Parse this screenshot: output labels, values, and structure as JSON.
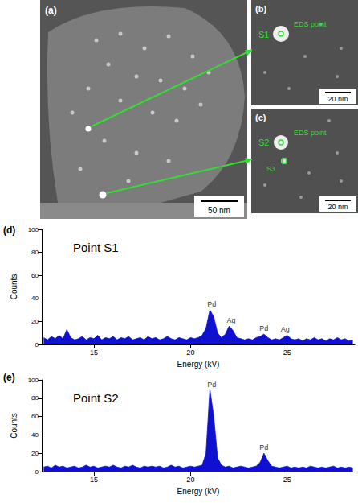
{
  "micrographs": {
    "a": {
      "label": "(a)",
      "scale_bar": "50 nm"
    },
    "b": {
      "label": "(b)",
      "points": [
        "S1"
      ],
      "marker_text": "EDS point",
      "scale_bar": "20 nm"
    },
    "c": {
      "label": "(c)",
      "points": [
        "S2",
        "S3"
      ],
      "marker_text": "EDS point",
      "scale_bar": "20 nm"
    }
  },
  "chart_data": [
    {
      "type": "area",
      "panel": "(d)",
      "title": "Point S1",
      "x_label": "Energy (kV)",
      "y_label": "Counts",
      "color": "#1010d0",
      "grid": false,
      "xlim": [
        12.3,
        28.5
      ],
      "xticks": [
        15,
        20,
        25
      ],
      "ylim": [
        0,
        100
      ],
      "yticks": [
        0,
        20,
        40,
        60,
        80,
        100
      ],
      "x": [
        12.4,
        12.6,
        12.8,
        13.0,
        13.2,
        13.4,
        13.6,
        13.8,
        14.0,
        14.2,
        14.4,
        14.6,
        14.8,
        15.0,
        15.2,
        15.4,
        15.6,
        15.8,
        16.0,
        16.2,
        16.4,
        16.6,
        16.8,
        17.0,
        17.2,
        17.4,
        17.6,
        17.8,
        18.0,
        18.2,
        18.4,
        18.6,
        18.8,
        19.0,
        19.2,
        19.4,
        19.6,
        19.8,
        20.0,
        20.2,
        20.4,
        20.6,
        20.8,
        21.0,
        21.2,
        21.4,
        21.6,
        21.8,
        22.0,
        22.2,
        22.4,
        22.6,
        22.8,
        23.0,
        23.2,
        23.4,
        23.6,
        23.8,
        24.0,
        24.2,
        24.4,
        24.6,
        24.8,
        25.0,
        25.2,
        25.4,
        25.6,
        25.8,
        26.0,
        26.2,
        26.4,
        26.6,
        26.8,
        27.0,
        27.2,
        27.4,
        27.6,
        27.8,
        28.0,
        28.2,
        28.4
      ],
      "values": [
        6,
        4,
        7,
        5,
        8,
        5,
        13,
        6,
        4,
        5,
        7,
        4,
        6,
        5,
        8,
        4,
        6,
        5,
        7,
        4,
        6,
        5,
        7,
        4,
        5,
        6,
        4,
        7,
        5,
        6,
        4,
        5,
        7,
        5,
        4,
        6,
        5,
        4,
        6,
        5,
        6,
        8,
        14,
        30,
        24,
        10,
        6,
        9,
        16,
        12,
        6,
        5,
        4,
        5,
        4,
        6,
        7,
        9,
        6,
        4,
        5,
        4,
        6,
        8,
        5,
        4,
        5,
        3,
        5,
        4,
        6,
        4,
        5,
        3,
        5,
        4,
        6,
        4,
        5,
        3,
        4
      ],
      "annotations": [
        {
          "text": "Pd",
          "x": 21.1,
          "y": 35
        },
        {
          "text": "Ag",
          "x": 22.1,
          "y": 21
        },
        {
          "text": "Pd",
          "x": 23.8,
          "y": 14
        },
        {
          "text": "Ag",
          "x": 24.9,
          "y": 13
        }
      ]
    },
    {
      "type": "area",
      "panel": "(e)",
      "title": "Point S2",
      "x_label": "Energy (kV)",
      "y_label": "Counts",
      "color": "#1010d0",
      "grid": false,
      "xlim": [
        12.3,
        28.5
      ],
      "xticks": [
        15,
        20,
        25
      ],
      "ylim": [
        0,
        100
      ],
      "yticks": [
        0,
        20,
        40,
        60,
        80,
        100
      ],
      "x": [
        12.4,
        12.6,
        12.8,
        13.0,
        13.2,
        13.4,
        13.6,
        13.8,
        14.0,
        14.2,
        14.4,
        14.6,
        14.8,
        15.0,
        15.2,
        15.4,
        15.6,
        15.8,
        16.0,
        16.2,
        16.4,
        16.6,
        16.8,
        17.0,
        17.2,
        17.4,
        17.6,
        17.8,
        18.0,
        18.2,
        18.4,
        18.6,
        18.8,
        19.0,
        19.2,
        19.4,
        19.6,
        19.8,
        20.0,
        20.2,
        20.4,
        20.6,
        20.8,
        21.0,
        21.2,
        21.4,
        21.6,
        21.8,
        22.0,
        22.2,
        22.4,
        22.6,
        22.8,
        23.0,
        23.2,
        23.4,
        23.6,
        23.8,
        24.0,
        24.2,
        24.4,
        24.6,
        24.8,
        25.0,
        25.2,
        25.4,
        25.6,
        25.8,
        26.0,
        26.2,
        26.4,
        26.6,
        26.8,
        27.0,
        27.2,
        27.4,
        27.6,
        27.8,
        28.0,
        28.2,
        28.4
      ],
      "values": [
        5,
        6,
        4,
        7,
        5,
        6,
        4,
        5,
        6,
        4,
        5,
        7,
        5,
        6,
        4,
        5,
        6,
        5,
        7,
        5,
        4,
        6,
        5,
        7,
        5,
        4,
        6,
        5,
        6,
        5,
        6,
        4,
        5,
        7,
        5,
        6,
        4,
        5,
        6,
        5,
        6,
        7,
        20,
        90,
        60,
        15,
        7,
        5,
        6,
        4,
        5,
        6,
        5,
        4,
        5,
        6,
        10,
        20,
        12,
        6,
        5,
        4,
        5,
        6,
        4,
        5,
        4,
        5,
        4,
        6,
        5,
        4,
        5,
        4,
        5,
        6,
        4,
        5,
        4,
        5,
        4
      ],
      "annotations": [
        {
          "text": "Pd",
          "x": 21.1,
          "y": 95
        },
        {
          "text": "Pd",
          "x": 23.8,
          "y": 26
        }
      ]
    }
  ]
}
